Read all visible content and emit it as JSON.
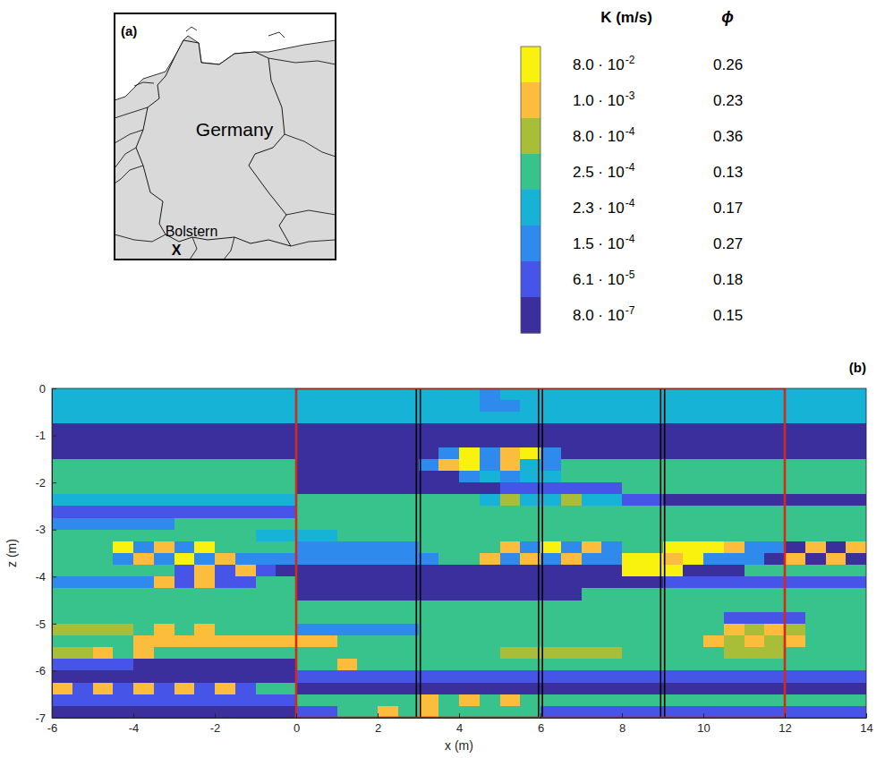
{
  "map": {
    "label": "(a)",
    "country": "Germany",
    "site": "Bolstern",
    "site_marker": "X"
  },
  "chart_data": {
    "type": "heatmap",
    "label": "(b)",
    "xlabel": "x (m)",
    "ylabel": "z (m)",
    "xlim": [
      -6,
      14
    ],
    "ylim": [
      -7,
      0
    ],
    "xticks": [
      -6,
      -4,
      -2,
      0,
      2,
      4,
      6,
      8,
      10,
      12,
      14
    ],
    "yticks": [
      -7,
      -6,
      -5,
      -4,
      -3,
      -2,
      -1,
      0
    ],
    "colorbar": {
      "headers": [
        "K (m/s)",
        "ϕ"
      ],
      "classes": [
        {
          "K": 0.08,
          "mantissa": "8.0 · 10",
          "exponent": "-2",
          "phi": 0.26,
          "color": "#f9f20f"
        },
        {
          "K": 0.001,
          "mantissa": "1.0 · 10",
          "exponent": "-3",
          "phi": 0.23,
          "color": "#fcbc3c"
        },
        {
          "K": 0.0008,
          "mantissa": "8.0 · 10",
          "exponent": "-4",
          "phi": 0.36,
          "color": "#a9be38"
        },
        {
          "K": 0.00025,
          "mantissa": "2.5 · 10",
          "exponent": "-4",
          "phi": 0.13,
          "color": "#38c38c"
        },
        {
          "K": 0.00023,
          "mantissa": "2.3 · 10",
          "exponent": "-4",
          "phi": 0.17,
          "color": "#17b3d6"
        },
        {
          "K": 0.00015,
          "mantissa": "1.5 · 10",
          "exponent": "-4",
          "phi": 0.27,
          "color": "#2f8aee"
        },
        {
          "K": 6.1e-05,
          "mantissa": "6.1 · 10",
          "exponent": "-5",
          "phi": 0.18,
          "color": "#4654e8"
        },
        {
          "K": 8e-07,
          "mantissa": "8.0 · 10",
          "exponent": "-7",
          "phi": 0.15,
          "color": "#3a2f9d"
        }
      ]
    },
    "cells": [
      [
        4,
        4,
        4,
        4,
        4,
        4,
        4,
        4,
        4,
        4,
        4,
        4,
        4,
        4,
        4,
        4,
        4,
        4,
        4,
        4,
        4,
        5,
        4,
        4,
        4,
        4,
        4,
        4,
        4,
        4,
        4,
        4,
        4,
        4,
        4,
        4,
        4,
        4,
        4,
        4
      ],
      [
        4,
        4,
        4,
        4,
        4,
        4,
        4,
        4,
        4,
        4,
        4,
        4,
        4,
        4,
        4,
        4,
        4,
        4,
        4,
        4,
        4,
        5,
        5,
        4,
        4,
        4,
        4,
        4,
        4,
        4,
        4,
        4,
        4,
        4,
        4,
        4,
        4,
        4,
        4,
        4
      ],
      [
        4,
        4,
        4,
        4,
        4,
        4,
        4,
        4,
        4,
        4,
        4,
        4,
        4,
        4,
        4,
        4,
        4,
        4,
        4,
        4,
        4,
        4,
        4,
        4,
        4,
        4,
        4,
        4,
        4,
        4,
        4,
        4,
        4,
        4,
        4,
        4,
        4,
        4,
        4,
        4
      ],
      [
        7,
        7,
        7,
        7,
        7,
        7,
        7,
        7,
        7,
        7,
        7,
        7,
        7,
        7,
        7,
        7,
        7,
        7,
        7,
        7,
        7,
        7,
        7,
        7,
        7,
        7,
        7,
        7,
        7,
        7,
        7,
        7,
        7,
        7,
        7,
        7,
        7,
        7,
        7,
        7
      ],
      [
        7,
        7,
        7,
        7,
        7,
        7,
        7,
        7,
        7,
        7,
        7,
        7,
        7,
        7,
        7,
        7,
        7,
        7,
        7,
        7,
        7,
        7,
        7,
        7,
        7,
        7,
        7,
        7,
        7,
        7,
        7,
        7,
        7,
        7,
        7,
        7,
        7,
        7,
        7,
        7
      ],
      [
        7,
        7,
        7,
        7,
        7,
        7,
        7,
        7,
        7,
        7,
        7,
        7,
        7,
        7,
        7,
        7,
        7,
        7,
        7,
        5,
        0,
        5,
        1,
        0,
        5,
        7,
        7,
        7,
        7,
        7,
        7,
        7,
        7,
        7,
        7,
        7,
        7,
        7,
        7,
        7
      ],
      [
        3,
        3,
        3,
        3,
        3,
        3,
        3,
        3,
        3,
        3,
        3,
        3,
        7,
        7,
        7,
        7,
        7,
        7,
        5,
        1,
        0,
        5,
        1,
        4,
        5,
        3,
        3,
        3,
        3,
        3,
        3,
        3,
        3,
        3,
        3,
        3,
        3,
        3,
        3,
        3
      ],
      [
        3,
        3,
        3,
        3,
        3,
        3,
        3,
        3,
        3,
        3,
        3,
        3,
        7,
        7,
        7,
        7,
        7,
        7,
        7,
        7,
        5,
        4,
        5,
        4,
        4,
        3,
        3,
        3,
        3,
        3,
        3,
        3,
        3,
        3,
        3,
        3,
        3,
        3,
        3,
        3
      ],
      [
        3,
        3,
        3,
        3,
        3,
        3,
        3,
        3,
        3,
        3,
        3,
        3,
        7,
        7,
        7,
        7,
        7,
        7,
        7,
        7,
        7,
        7,
        6,
        6,
        6,
        6,
        6,
        6,
        3,
        3,
        3,
        3,
        3,
        3,
        3,
        3,
        3,
        3,
        3,
        3
      ],
      [
        4,
        4,
        4,
        4,
        4,
        4,
        4,
        4,
        4,
        4,
        4,
        4,
        3,
        3,
        3,
        3,
        3,
        3,
        3,
        3,
        3,
        4,
        2,
        4,
        4,
        2,
        4,
        4,
        6,
        6,
        7,
        7,
        7,
        7,
        7,
        7,
        7,
        7,
        7,
        7
      ],
      [
        6,
        6,
        6,
        6,
        6,
        6,
        6,
        6,
        6,
        6,
        6,
        6,
        3,
        3,
        3,
        3,
        3,
        3,
        3,
        3,
        3,
        3,
        3,
        3,
        3,
        3,
        3,
        3,
        3,
        3,
        3,
        3,
        3,
        3,
        3,
        3,
        3,
        3,
        3,
        3
      ],
      [
        5,
        5,
        5,
        5,
        5,
        5,
        3,
        3,
        3,
        3,
        3,
        3,
        3,
        3,
        3,
        3,
        3,
        3,
        3,
        3,
        3,
        3,
        3,
        3,
        3,
        3,
        3,
        3,
        3,
        3,
        3,
        3,
        3,
        3,
        3,
        3,
        3,
        3,
        3,
        3
      ],
      [
        3,
        3,
        3,
        3,
        3,
        3,
        3,
        3,
        3,
        3,
        4,
        4,
        4,
        4,
        3,
        3,
        3,
        3,
        3,
        3,
        3,
        3,
        3,
        3,
        3,
        3,
        3,
        3,
        3,
        3,
        3,
        3,
        3,
        3,
        3,
        3,
        3,
        3,
        3,
        3
      ],
      [
        3,
        3,
        3,
        0,
        5,
        1,
        5,
        0,
        3,
        3,
        3,
        3,
        5,
        5,
        5,
        5,
        5,
        5,
        3,
        3,
        3,
        3,
        1,
        5,
        0,
        5,
        1,
        5,
        3,
        3,
        0,
        0,
        0,
        1,
        5,
        5,
        7,
        1,
        7,
        1
      ],
      [
        3,
        3,
        3,
        5,
        1,
        5,
        0,
        5,
        1,
        5,
        5,
        5,
        5,
        5,
        5,
        5,
        5,
        5,
        5,
        3,
        3,
        1,
        5,
        1,
        5,
        1,
        5,
        5,
        0,
        0,
        1,
        0,
        5,
        5,
        5,
        7,
        1,
        7,
        1,
        7
      ],
      [
        3,
        3,
        3,
        3,
        3,
        3,
        6,
        1,
        6,
        1,
        6,
        7,
        7,
        7,
        7,
        7,
        7,
        7,
        7,
        7,
        7,
        7,
        7,
        7,
        7,
        7,
        7,
        7,
        0,
        0,
        0,
        7,
        7,
        7,
        3,
        3,
        3,
        3,
        3,
        3
      ],
      [
        5,
        5,
        5,
        5,
        5,
        1,
        6,
        1,
        6,
        6,
        3,
        3,
        7,
        7,
        7,
        7,
        7,
        7,
        7,
        7,
        7,
        7,
        7,
        7,
        7,
        7,
        7,
        7,
        7,
        7,
        6,
        6,
        6,
        6,
        6,
        6,
        6,
        6,
        6,
        6
      ],
      [
        3,
        3,
        3,
        3,
        3,
        3,
        3,
        3,
        3,
        3,
        3,
        3,
        7,
        7,
        7,
        7,
        7,
        7,
        7,
        7,
        7,
        7,
        7,
        7,
        7,
        7,
        3,
        3,
        3,
        3,
        3,
        3,
        3,
        3,
        3,
        3,
        3,
        3,
        3,
        3
      ],
      [
        3,
        3,
        3,
        3,
        3,
        3,
        3,
        3,
        3,
        3,
        3,
        3,
        3,
        3,
        3,
        3,
        3,
        3,
        3,
        3,
        3,
        3,
        3,
        3,
        3,
        3,
        3,
        3,
        3,
        3,
        3,
        3,
        3,
        3,
        3,
        3,
        3,
        3,
        3,
        3
      ],
      [
        3,
        3,
        3,
        3,
        3,
        3,
        3,
        3,
        3,
        3,
        3,
        3,
        3,
        3,
        3,
        3,
        3,
        3,
        3,
        3,
        3,
        3,
        3,
        3,
        3,
        3,
        3,
        3,
        3,
        3,
        3,
        3,
        3,
        6,
        6,
        6,
        6,
        3,
        3,
        3
      ],
      [
        2,
        2,
        2,
        2,
        3,
        1,
        3,
        1,
        3,
        3,
        3,
        3,
        5,
        5,
        5,
        5,
        5,
        5,
        3,
        3,
        3,
        3,
        3,
        3,
        3,
        3,
        3,
        3,
        3,
        3,
        3,
        3,
        3,
        1,
        2,
        1,
        2,
        3,
        3,
        3
      ],
      [
        3,
        3,
        3,
        3,
        1,
        1,
        1,
        1,
        1,
        1,
        1,
        1,
        1,
        1,
        3,
        3,
        3,
        3,
        3,
        3,
        3,
        3,
        3,
        3,
        3,
        3,
        3,
        3,
        3,
        3,
        3,
        3,
        1,
        2,
        1,
        2,
        1,
        3,
        3,
        3
      ],
      [
        2,
        2,
        1,
        3,
        1,
        3,
        3,
        3,
        3,
        3,
        3,
        3,
        3,
        3,
        3,
        3,
        3,
        3,
        3,
        3,
        3,
        3,
        2,
        2,
        2,
        2,
        2,
        2,
        3,
        3,
        3,
        3,
        3,
        2,
        2,
        2,
        3,
        3,
        3,
        3
      ],
      [
        6,
        6,
        6,
        6,
        7,
        7,
        7,
        7,
        7,
        7,
        7,
        7,
        3,
        3,
        1,
        3,
        3,
        3,
        3,
        3,
        3,
        3,
        3,
        3,
        3,
        3,
        3,
        3,
        3,
        3,
        3,
        3,
        3,
        3,
        3,
        3,
        3,
        3,
        3,
        3
      ],
      [
        7,
        7,
        7,
        7,
        7,
        7,
        7,
        7,
        7,
        7,
        7,
        7,
        6,
        6,
        6,
        6,
        6,
        6,
        6,
        6,
        6,
        6,
        6,
        6,
        6,
        6,
        6,
        6,
        6,
        6,
        6,
        6,
        6,
        6,
        6,
        6,
        6,
        6,
        6,
        6
      ],
      [
        1,
        6,
        1,
        6,
        1,
        6,
        1,
        6,
        1,
        6,
        3,
        3,
        7,
        7,
        7,
        7,
        7,
        7,
        7,
        7,
        7,
        7,
        7,
        7,
        7,
        7,
        7,
        7,
        7,
        7,
        7,
        7,
        7,
        7,
        7,
        7,
        7,
        7,
        7,
        7
      ],
      [
        6,
        6,
        6,
        6,
        6,
        6,
        6,
        6,
        6,
        6,
        6,
        6,
        3,
        3,
        3,
        3,
        3,
        3,
        1,
        3,
        1,
        3,
        1,
        3,
        3,
        3,
        3,
        3,
        3,
        3,
        3,
        3,
        3,
        3,
        3,
        3,
        3,
        3,
        3,
        3
      ],
      [
        7,
        7,
        7,
        7,
        7,
        7,
        7,
        7,
        7,
        7,
        7,
        7,
        6,
        6,
        3,
        3,
        1,
        3,
        1,
        3,
        3,
        3,
        3,
        3,
        6,
        6,
        6,
        6,
        6,
        6,
        6,
        6,
        6,
        6,
        6,
        6,
        6,
        6,
        6,
        6
      ]
    ],
    "region": {
      "x": [
        0,
        12
      ],
      "z": [
        -7,
        0
      ]
    },
    "wells": [
      3,
      6,
      9
    ]
  }
}
